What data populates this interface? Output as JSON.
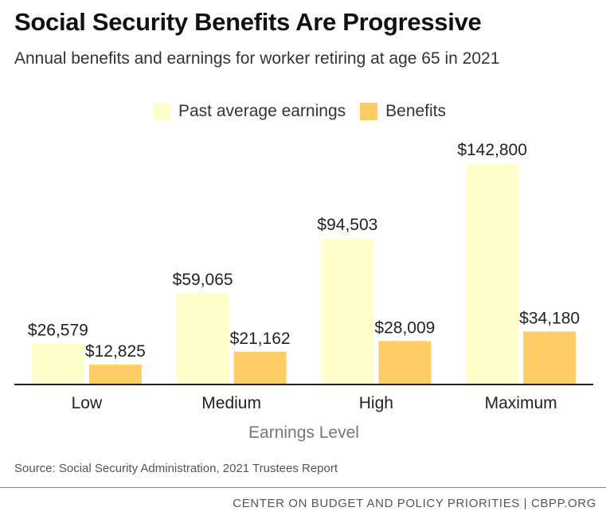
{
  "header": {
    "title": "Social Security Benefits Are Progressive",
    "subtitle": "Annual benefits and earnings for worker retiring at age 65 in 2021"
  },
  "legend": {
    "items": [
      {
        "label": "Past average earnings",
        "color": "#ffffcc"
      },
      {
        "label": "Benefits",
        "color": "#ffcc66"
      }
    ]
  },
  "chart_data": {
    "type": "bar",
    "categories": [
      "Low",
      "Medium",
      "High",
      "Maximum"
    ],
    "series": [
      {
        "name": "Past average earnings",
        "values": [
          26579,
          59065,
          94503,
          142800
        ],
        "labels": [
          "$26,579",
          "$59,065",
          "$94,503",
          "$142,800"
        ],
        "color": "#ffffcc"
      },
      {
        "name": "Benefits",
        "values": [
          12825,
          21162,
          28009,
          34180
        ],
        "labels": [
          "$12,825",
          "$21,162",
          "$28,009",
          "$34,180"
        ],
        "color": "#ffcc66"
      }
    ],
    "xlabel": "Earnings Level",
    "ylabel": "",
    "ylim": [
      0,
      142800
    ],
    "grid": false,
    "legend_position": "top"
  },
  "source": "Source: Social Security Administration, 2021 Trustees Report",
  "footer": "CENTER ON BUDGET AND POLICY PRIORITIES | CBPP.ORG"
}
